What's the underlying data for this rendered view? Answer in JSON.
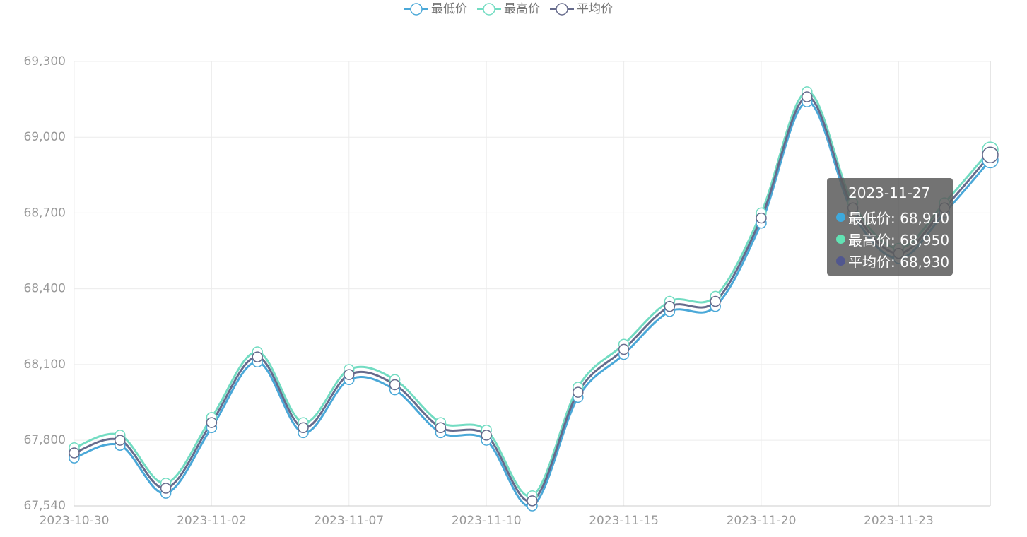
{
  "chart_data": {
    "type": "line",
    "smooth": true,
    "categories": [
      "2023-10-30",
      null,
      null,
      "2023-11-02",
      null,
      null,
      "2023-11-07",
      null,
      null,
      "2023-11-10",
      null,
      null,
      "2023-11-15",
      null,
      null,
      "2023-11-20",
      null,
      null,
      "2023-11-23",
      null,
      null
    ],
    "series": [
      {
        "name": "最低价",
        "color": "#4aa8d8",
        "values": [
          67730,
          67780,
          67590,
          67850,
          68110,
          67830,
          68040,
          68000,
          67830,
          67800,
          67540,
          67970,
          68140,
          68310,
          68330,
          68660,
          69140,
          68700,
          68520,
          68700,
          68910
        ]
      },
      {
        "name": "最高价",
        "color": "#72dcc2",
        "values": [
          67770,
          67820,
          67630,
          67890,
          68150,
          67870,
          68080,
          68040,
          67870,
          67840,
          67580,
          68010,
          68180,
          68350,
          68370,
          68700,
          69180,
          68740,
          68560,
          68740,
          68950
        ]
      },
      {
        "name": "平均价",
        "color": "#666b8c",
        "values": [
          67750,
          67800,
          67610,
          67870,
          68130,
          67850,
          68060,
          68020,
          67850,
          67820,
          67560,
          67990,
          68160,
          68330,
          68350,
          68680,
          69160,
          68720,
          68540,
          68720,
          68930
        ]
      }
    ],
    "ylim": [
      67540,
      69300
    ],
    "yticks": [
      {
        "value": 67540,
        "label": "67,540"
      },
      {
        "value": 67800,
        "label": "67,800"
      },
      {
        "value": 68100,
        "label": "68,100"
      },
      {
        "value": 68400,
        "label": "68,400"
      },
      {
        "value": 68700,
        "label": "68,700"
      },
      {
        "value": 69000,
        "label": "69,000"
      },
      {
        "value": 69300,
        "label": "69,300"
      }
    ],
    "grid": true,
    "legend": "top",
    "tooltip": {
      "title": "2023-11-27",
      "rows": [
        {
          "text": "最低价: 68,910",
          "color": "#3ea9dc"
        },
        {
          "text": "最高价: 68,950",
          "color": "#62e3b4"
        },
        {
          "text": "平均价: 68,930",
          "color": "#51578f"
        }
      ]
    }
  }
}
